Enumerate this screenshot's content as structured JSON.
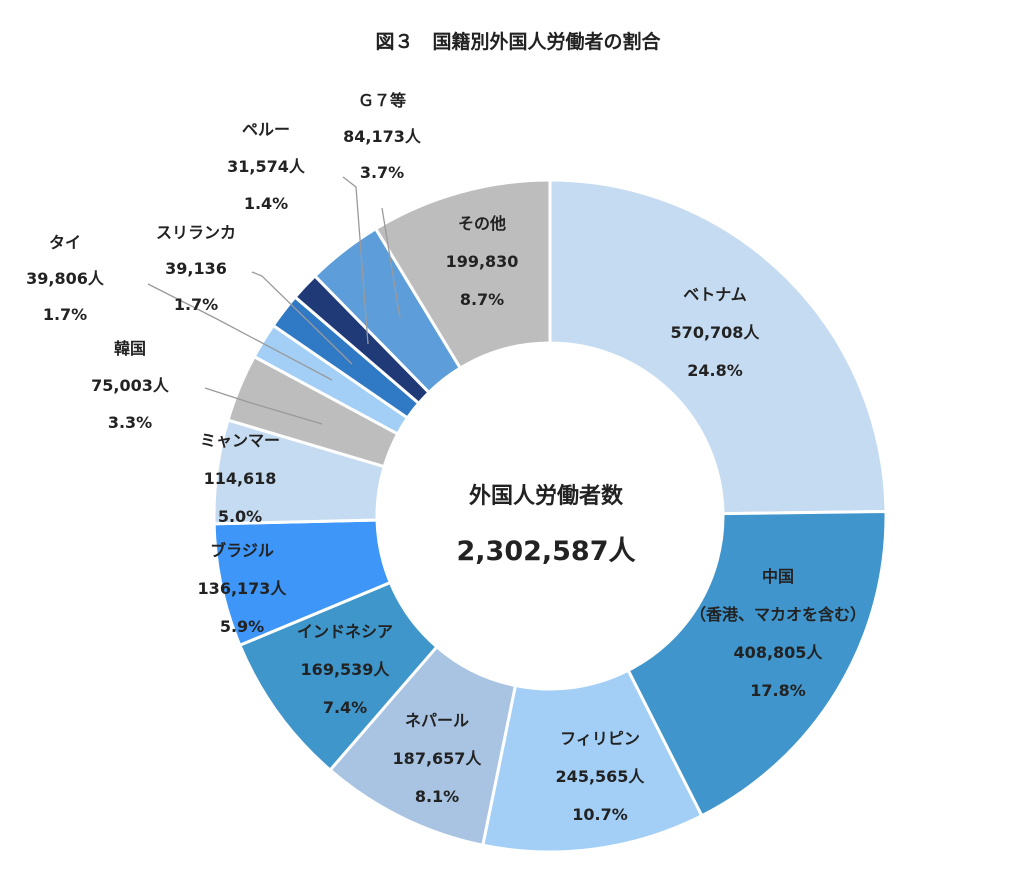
{
  "chart_data": {
    "type": "pie",
    "variant": "donut",
    "title": "図３　国籍別外国人労働者の割合",
    "center_label": "外国人労働者数",
    "center_value": "2,302,587人",
    "direction": "clockwise",
    "start": "12 o'clock",
    "series": [
      {
        "name": "ベトナム",
        "lines": [
          "ベトナム",
          "570,708人",
          "24.8%"
        ],
        "value": 570708,
        "percent": 24.8,
        "color": "#C5DBF1"
      },
      {
        "name": "中国",
        "lines": [
          "中国",
          "（香港、マカオを含む）",
          "408,805人",
          "17.8%"
        ],
        "value": 408805,
        "percent": 17.8,
        "color": "#3F95CC"
      },
      {
        "name": "フィリピン",
        "lines": [
          "フィリピン",
          "245,565人",
          "10.7%"
        ],
        "value": 245565,
        "percent": 10.7,
        "color": "#A3CFF7"
      },
      {
        "name": "ネパール",
        "lines": [
          "ネパール",
          "187,657人",
          "8.1%"
        ],
        "value": 187657,
        "percent": 8.1,
        "color": "#A8C4E2"
      },
      {
        "name": "インドネシア",
        "lines": [
          "インドネシア",
          "169,539人",
          "7.4%"
        ],
        "value": 169539,
        "percent": 7.4,
        "color": "#3E96CA"
      },
      {
        "name": "ブラジル",
        "lines": [
          "ブラジル",
          "136,173人",
          "5.9%"
        ],
        "value": 136173,
        "percent": 5.9,
        "color": "#3E96F8"
      },
      {
        "name": "ミャンマー",
        "lines": [
          "ミャンマー",
          "114,618",
          "5.0%"
        ],
        "value": 114618,
        "percent": 5.0,
        "color": "#C5DBF1"
      },
      {
        "name": "韓国",
        "lines": [
          "韓国",
          "75,003人",
          "3.3%"
        ],
        "value": 75003,
        "percent": 3.3,
        "color": "#BDBDBD"
      },
      {
        "name": "タイ",
        "lines": [
          "タイ",
          "39,806人",
          "1.7%"
        ],
        "value": 39806,
        "percent": 1.7,
        "color": "#A3CFF7"
      },
      {
        "name": "スリランカ",
        "lines": [
          "スリランカ",
          "39,136",
          "1.7%"
        ],
        "value": 39136,
        "percent": 1.7,
        "color": "#3079C4"
      },
      {
        "name": "ペルー",
        "lines": [
          "ペルー",
          "31,574人",
          "1.4%"
        ],
        "value": 31574,
        "percent": 1.4,
        "color": "#203A78"
      },
      {
        "name": "Ｇ７等",
        "lines": [
          "Ｇ７等",
          "84,173人",
          "3.7%"
        ],
        "value": 84173,
        "percent": 3.7,
        "color": "#5D9EDA"
      },
      {
        "name": "その他",
        "lines": [
          "その他",
          "199,830",
          "8.7%"
        ],
        "value": 199830,
        "percent": 8.7,
        "color": "#BDBDBD"
      }
    ]
  }
}
